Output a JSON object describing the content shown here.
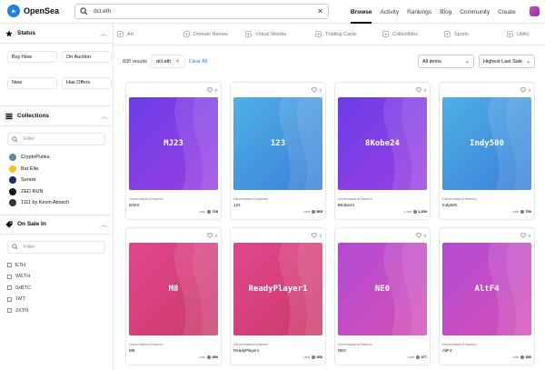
{
  "app": {
    "name": "OpenSea",
    "logo_color": "#2081e2"
  },
  "search": {
    "value": "dcl.eth",
    "clear": "✕"
  },
  "nav": {
    "items": [
      "Browse",
      "Activity",
      "Rankings",
      "Blog",
      "Community",
      "Create"
    ],
    "active": "Browse"
  },
  "sidebar": {
    "status": {
      "title": "Status",
      "buttons": [
        "Buy Now",
        "On Auction",
        "New",
        "Has Offers"
      ]
    },
    "collections": {
      "title": "Collections",
      "filter_placeholder": "Filter",
      "items": [
        {
          "name": "CryptoPunks",
          "color": "#6a8494"
        },
        {
          "name": "Bat Ella",
          "color": "#f5c518"
        },
        {
          "name": "Sorare",
          "color": "#1a2b6d"
        },
        {
          "name": "ZED RUN",
          "color": "#111111"
        },
        {
          "name": "1111 by Kevin Abosch",
          "color": "#333333"
        }
      ]
    },
    "onsale": {
      "title": "On Sale In",
      "filter_placeholder": "Filter",
      "items": [
        "ETH",
        "WETH",
        "0xBTC",
        "1MT",
        "2XTN"
      ]
    }
  },
  "categories": [
    {
      "label": "Art",
      "icon": "art-icon"
    },
    {
      "label": "Domain Names",
      "icon": "domain-icon"
    },
    {
      "label": "Virtual Worlds",
      "icon": "virtual-worlds-icon"
    },
    {
      "label": "Trading Cards",
      "icon": "trading-cards-icon"
    },
    {
      "label": "Collectibles",
      "icon": "collectibles-icon"
    },
    {
      "label": "Sports",
      "icon": "sports-icon"
    },
    {
      "label": "Utility",
      "icon": "utility-icon"
    }
  ],
  "results": {
    "count": "830 results",
    "chip": "dcl.eth",
    "clear_all": "Clear All"
  },
  "dropdowns": {
    "items": "All items",
    "sort": "Highest Last Sale"
  },
  "cards": [
    {
      "name": "MJ23",
      "collection": "Decentraland Names",
      "likes": "0",
      "last_label": "Last",
      "last": "735",
      "theme": "purple"
    },
    {
      "name": "123",
      "collection": "Decentraland Names",
      "likes": "0",
      "last_label": "Last",
      "last": "565",
      "theme": "blue"
    },
    {
      "name": "8Kobe24",
      "collection": "Decentraland Names",
      "likes": "0",
      "last_label": "Last",
      "last": "1,200",
      "theme": "purple"
    },
    {
      "name": "Indy500",
      "collection": "Decentraland Names",
      "likes": "0",
      "last_label": "Last",
      "last": "750",
      "theme": "blue"
    },
    {
      "name": "M8",
      "collection": "Decentraland Names",
      "likes": "3",
      "last_label": "Last",
      "last": "380",
      "theme": "pink"
    },
    {
      "name": "ReadyPlayer1",
      "collection": "Decentraland Names",
      "likes": "0",
      "last_label": "Last",
      "last": "330",
      "theme": "pink"
    },
    {
      "name": "NE0",
      "collection": "Decentraland Names",
      "likes": "0",
      "last_label": "Last",
      "last": "477",
      "theme": "magenta"
    },
    {
      "name": "AltF4",
      "collection": "Decentraland Names",
      "likes": "0",
      "last_label": "Last",
      "last": "380",
      "theme": "magenta"
    }
  ],
  "themes": {
    "purple": [
      "#6a3de8",
      "#9b3fe0"
    ],
    "blue": [
      "#4fb0e6",
      "#3a7ed8"
    ],
    "pink": [
      "#e2468c",
      "#c93a6b"
    ],
    "magenta": [
      "#b34ad6",
      "#d44fb4"
    ]
  }
}
